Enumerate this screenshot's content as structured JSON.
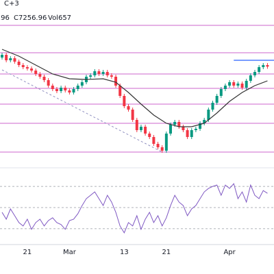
{
  "chart_data": {
    "type": "candlestick",
    "title": "C+3",
    "annotations": [
      ".96",
      "C7256.96",
      "Vol657"
    ],
    "categories": [
      null,
      null,
      null,
      null,
      null,
      null,
      "21",
      null,
      null,
      null,
      null,
      null,
      null,
      null,
      null,
      null,
      "Mar",
      null,
      null,
      null,
      null,
      null,
      null,
      null,
      null,
      null,
      null,
      null,
      null,
      "13",
      null,
      null,
      null,
      null,
      null,
      null,
      null,
      null,
      null,
      "21",
      null,
      null,
      null,
      null,
      null,
      null,
      null,
      null,
      null,
      null,
      null,
      null,
      null,
      null,
      "Apr",
      null,
      null,
      null,
      null,
      null,
      null,
      null,
      null,
      null
    ],
    "open": [
      7290,
      7300,
      7280,
      7287.5,
      7275,
      7262.5,
      7255,
      7250,
      7242.5,
      7230,
      7220,
      7207.5,
      7187.5,
      7175,
      7167.5,
      7180,
      7170,
      7162.5,
      7175,
      7187.5,
      7200,
      7220,
      7225,
      7240,
      7230,
      7237.5,
      7225,
      7220,
      7187.5,
      7150,
      7112.5,
      7100,
      7062.5,
      7025,
      7037.5,
      7012.5,
      7000,
      6975,
      6962.5,
      6950,
      7012.5,
      7045,
      7055,
      7037.5,
      7025,
      7000,
      7025,
      7030,
      7050,
      7062.5,
      7100,
      7125,
      7150,
      7175,
      7187.5,
      7200,
      7187.5,
      7195,
      7180,
      7205,
      7225,
      7237.5,
      7255,
      7262.5
    ],
    "high": [
      7307.5,
      7307.5,
      7295,
      7295,
      7282.5,
      7270,
      7262.5,
      7257.5,
      7250,
      7237.5,
      7227.5,
      7215,
      7195,
      7182.5,
      7187.5,
      7187.5,
      7177.5,
      7182.5,
      7195,
      7207.5,
      7227.5,
      7232.5,
      7247.5,
      7247.5,
      7245,
      7245,
      7232.5,
      7227.5,
      7195,
      7157.5,
      7120,
      7107.5,
      7070,
      7045,
      7045,
      7020,
      7007.5,
      6982.5,
      6970,
      7020,
      7052.5,
      7062.5,
      7062.5,
      7045,
      7032.5,
      7032.5,
      7037.5,
      7057.5,
      7070,
      7107.5,
      7132.5,
      7157.5,
      7182.5,
      7195,
      7207.5,
      7207.5,
      7202.5,
      7202.5,
      7212.5,
      7232.5,
      7245,
      7262.5,
      7270,
      7270
    ],
    "low": [
      7282.5,
      7272.5,
      7272.5,
      7267.5,
      7255,
      7247.5,
      7242.5,
      7235,
      7222.5,
      7212.5,
      7200,
      7180,
      7167.5,
      7160,
      7160,
      7162.5,
      7155,
      7155,
      7167.5,
      7180,
      7192.5,
      7212.5,
      7217.5,
      7222.5,
      7222.5,
      7217.5,
      7212.5,
      7180,
      7142.5,
      7105,
      7092.5,
      7055,
      7017.5,
      7017.5,
      7005,
      6992.5,
      6967.5,
      6955,
      6942.5,
      6942.5,
      7005,
      7037.5,
      7030,
      7017.5,
      6992.5,
      6992.5,
      7017.5,
      7022.5,
      7042.5,
      7055,
      7092.5,
      7117.5,
      7142.5,
      7167.5,
      7180,
      7180,
      7180,
      7172.5,
      7172.5,
      7197.5,
      7217.5,
      7230,
      7247.5,
      7249
    ],
    "close": [
      7300,
      7280,
      7287.5,
      7275,
      7262.5,
      7255,
      7250,
      7242.5,
      7230,
      7220,
      7207.5,
      7187.5,
      7175,
      7167.5,
      7180,
      7170,
      7162.5,
      7175,
      7187.5,
      7200,
      7220,
      7225,
      7240,
      7230,
      7237.5,
      7225,
      7220,
      7187.5,
      7150,
      7112.5,
      7100,
      7062.5,
      7025,
      7037.5,
      7012.5,
      7000,
      6975,
      6962.5,
      6950,
      7012.5,
      7045,
      7055,
      7037.5,
      7025,
      7000,
      7025,
      7030,
      7050,
      7062.5,
      7100,
      7125,
      7150,
      7175,
      7187.5,
      7200,
      7187.5,
      7195,
      7180,
      7205,
      7225,
      7237.5,
      7255,
      7262.5,
      7256.96
    ],
    "up_color": "#089981",
    "down_color": "#f23645",
    "ylim": [
      6900,
      7450
    ],
    "moving_average": {
      "color": "#333333",
      "x": [
        0,
        4,
        8,
        12,
        16,
        20,
        24,
        27,
        30,
        33,
        36,
        39,
        42,
        45,
        48,
        51,
        54,
        57,
        60,
        63
      ],
      "values": [
        7320,
        7295,
        7262.5,
        7230,
        7212.5,
        7210,
        7212.5,
        7200,
        7162.5,
        7120,
        7080,
        7050,
        7037.5,
        7037.5,
        7050,
        7087.5,
        7130,
        7162.5,
        7187.5,
        7205
      ]
    },
    "trendline": {
      "color": "#9090c0",
      "x": [
        0,
        38
      ],
      "values": [
        7245,
        6945
      ]
    },
    "levels": {
      "color": "#cc66cc",
      "values": [
        7407.5,
        7307.5,
        7230,
        7177.5,
        7120,
        7050,
        6945
      ]
    },
    "resistance": {
      "color": "#2962ff",
      "x": [
        55,
        63
      ],
      "value": 7280
    },
    "rsi": {
      "color": "#7e57c2",
      "ylim": [
        15,
        85
      ],
      "levels": [
        70,
        50,
        30
      ],
      "values": [
        45.5,
        39,
        48.7,
        42.3,
        35.8,
        32.6,
        39,
        29.4,
        35.8,
        39,
        32.6,
        37.7,
        40.3,
        35.8,
        33.9,
        29.4,
        37.7,
        39,
        44.2,
        51.9,
        58.4,
        61.6,
        64.8,
        58.4,
        51.9,
        61.6,
        55.2,
        45.5,
        32.6,
        26.1,
        35.8,
        32.6,
        42.3,
        29.4,
        39,
        45.5,
        35.8,
        42.3,
        32.6,
        40.3,
        51.9,
        61.6,
        55.2,
        51.9,
        42.3,
        48.7,
        51.9,
        58.4,
        64.8,
        68.1,
        70,
        71.3,
        61.6,
        71.3,
        68.1,
        72.6,
        58.4,
        64.8,
        55.2,
        71.3,
        61.6,
        58.4,
        66.1,
        63.5
      ]
    }
  }
}
